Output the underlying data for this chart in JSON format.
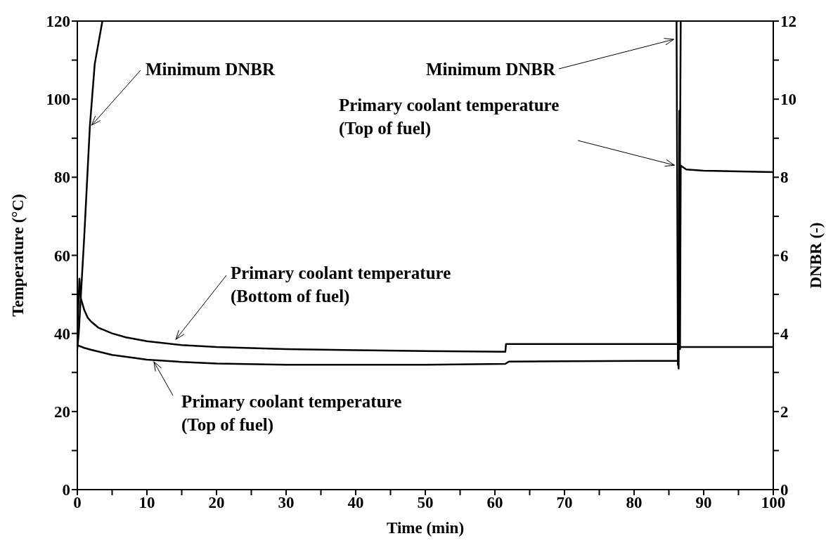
{
  "chart_data": {
    "type": "line",
    "xlabel": "Time (min)",
    "ylabel": "Temperature (°C)",
    "y2label": "DNBR (-)",
    "xlim": [
      0,
      100
    ],
    "xticks": [
      0,
      {
        "value": 5,
        "label": null
      },
      10,
      {
        "value": 15,
        "label": null
      },
      20,
      {
        "value": 25,
        "label": null
      },
      30,
      {
        "value": 35,
        "label": null
      },
      40,
      {
        "value": 45,
        "label": null
      },
      50,
      {
        "value": 55,
        "label": null
      },
      60,
      {
        "value": 65,
        "label": null
      },
      70,
      {
        "value": 75,
        "label": null
      },
      80,
      {
        "value": 85,
        "label": null
      },
      90,
      {
        "value": 95,
        "label": null
      },
      100
    ],
    "ylim": [
      0,
      120
    ],
    "yticks": [
      0,
      {
        "value": 10,
        "label": null
      },
      20,
      {
        "value": 30,
        "label": null
      },
      40,
      {
        "value": 50,
        "label": null
      },
      60,
      {
        "value": 70,
        "label": null
      },
      80,
      {
        "value": 90,
        "label": null
      },
      100,
      {
        "value": 110,
        "label": null
      },
      120
    ],
    "y2lim": [
      0,
      12
    ],
    "y2ticks": [
      0,
      {
        "value": 1,
        "label": null
      },
      2,
      {
        "value": 3,
        "label": null
      },
      4,
      {
        "value": 5,
        "label": null
      },
      6,
      {
        "value": 7,
        "label": null
      },
      8,
      {
        "value": 9,
        "label": null
      },
      10,
      {
        "value": 11,
        "label": null
      },
      12
    ],
    "series": [
      {
        "color": "#000000",
        "x": [
          0,
          0.1,
          0.3,
          0.5,
          1,
          1.5,
          2,
          3,
          5,
          7,
          10,
          15,
          20,
          30,
          40,
          50,
          61.5,
          61.6,
          70,
          80,
          86.4,
          86.6,
          90,
          100
        ],
        "values": [
          40,
          45,
          54,
          49,
          46,
          44,
          43,
          41.5,
          40,
          39,
          38,
          37,
          36.5,
          36,
          35.7,
          35.5,
          35.3,
          37.3,
          37.3,
          37.3,
          37.3,
          36.5,
          36.5,
          36.5
        ]
      },
      {
        "color": "#000000",
        "x": [
          0,
          1,
          2,
          5,
          10,
          15,
          20,
          30,
          40,
          50,
          61.5,
          62,
          70,
          86.3,
          86.4,
          86.5,
          86.6,
          86.7,
          87.5,
          90,
          95,
          100
        ],
        "values": [
          37,
          36.3,
          35.8,
          34.5,
          33.3,
          32.7,
          32.3,
          32,
          32,
          32,
          32.2,
          32.8,
          32.9,
          33,
          31,
          97,
          36,
          83,
          82,
          81.7,
          81.5,
          81.3
        ]
      },
      {
        "color": "#000000",
        "axis": "y2",
        "x": [
          0,
          0.2,
          1,
          1.8,
          2.5,
          3.6,
          3.7,
          86.1,
          86.3,
          86.5,
          86.7
        ],
        "values": [
          3.6,
          4,
          6.5,
          9.3,
          10.9,
          12,
          null,
          12,
          3.2,
          5,
          12
        ]
      }
    ],
    "annotations": [
      {
        "text": "Minimum DNBR",
        "x": 1.8,
        "y": 92.8
      },
      {
        "text": "Minimum DNBR",
        "x": 86.1,
        "y": 115.5
      },
      {
        "text": "Primary coolant temperature\n(Top of fuel)",
        "x": 86.2,
        "y": 82.9
      },
      {
        "text": "Primary coolant temperature\n(Bottom of fuel)",
        "x": 13.9,
        "y": 37.9
      },
      {
        "text": "Primary coolant temperature\n(Top of fuel)",
        "x": 10.8,
        "y": 33.4
      }
    ]
  }
}
